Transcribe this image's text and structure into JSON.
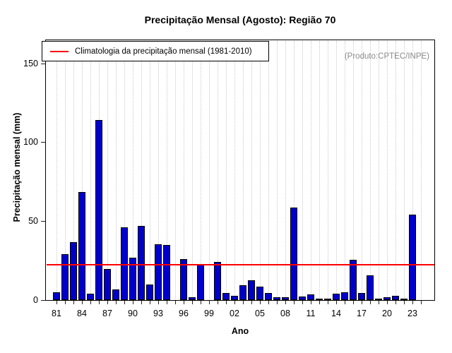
{
  "figure": {
    "title": "Precipitação Mensal (Agosto): Região 70",
    "product_note": "(Produto:CPTEC/INPE)"
  },
  "chart_data": {
    "type": "bar",
    "title": "Precipitação Mensal (Agosto): Região 70",
    "xlabel": "Ano",
    "ylabel": "Precipitação mensal (mm)",
    "annotation": "(Produto:CPTEC/INPE)",
    "legend": [
      {
        "label": "Climatologia da precipitação mensal (1981-2010)",
        "color": "#ff0000",
        "position": "top-left"
      }
    ],
    "years": [
      1981,
      1982,
      1983,
      1984,
      1985,
      1986,
      1987,
      1988,
      1989,
      1990,
      1991,
      1992,
      1993,
      1994,
      1995,
      1996,
      1997,
      1998,
      1999,
      2000,
      2001,
      2002,
      2003,
      2004,
      2005,
      2006,
      2007,
      2008,
      2009,
      2010,
      2011,
      2012,
      2013,
      2014,
      2015,
      2016,
      2017,
      2018,
      2019,
      2020,
      2021,
      2022,
      2023,
      2024
    ],
    "values": [
      5,
      29,
      36.5,
      68.5,
      4,
      114,
      19.5,
      6.5,
      46,
      27,
      47,
      10,
      35.5,
      35,
      0,
      26,
      2,
      23,
      0,
      24,
      4.5,
      2.5,
      9.5,
      12.5,
      8.5,
      4.5,
      2,
      2,
      58.5,
      2.2,
      3.5,
      0.5,
      0.5,
      4,
      5,
      25.5,
      4.5,
      15.5,
      0.5,
      2,
      2.5,
      1,
      54,
      0
    ],
    "climatology_value": 22,
    "ylim": [
      0,
      165
    ],
    "yticks": [
      0,
      50,
      100,
      150
    ],
    "xtick_labels": [
      "81",
      "84",
      "87",
      "90",
      "93",
      "96",
      "99",
      "02",
      "05",
      "08",
      "11",
      "14",
      "17",
      "20",
      "23"
    ],
    "xtick_label_step": 3,
    "bar_color": "#0000CC",
    "bar_border_color": "#000000",
    "climatology_color": "#FF0000",
    "grid": "vertical-dotted",
    "legend_position": "top-left"
  }
}
